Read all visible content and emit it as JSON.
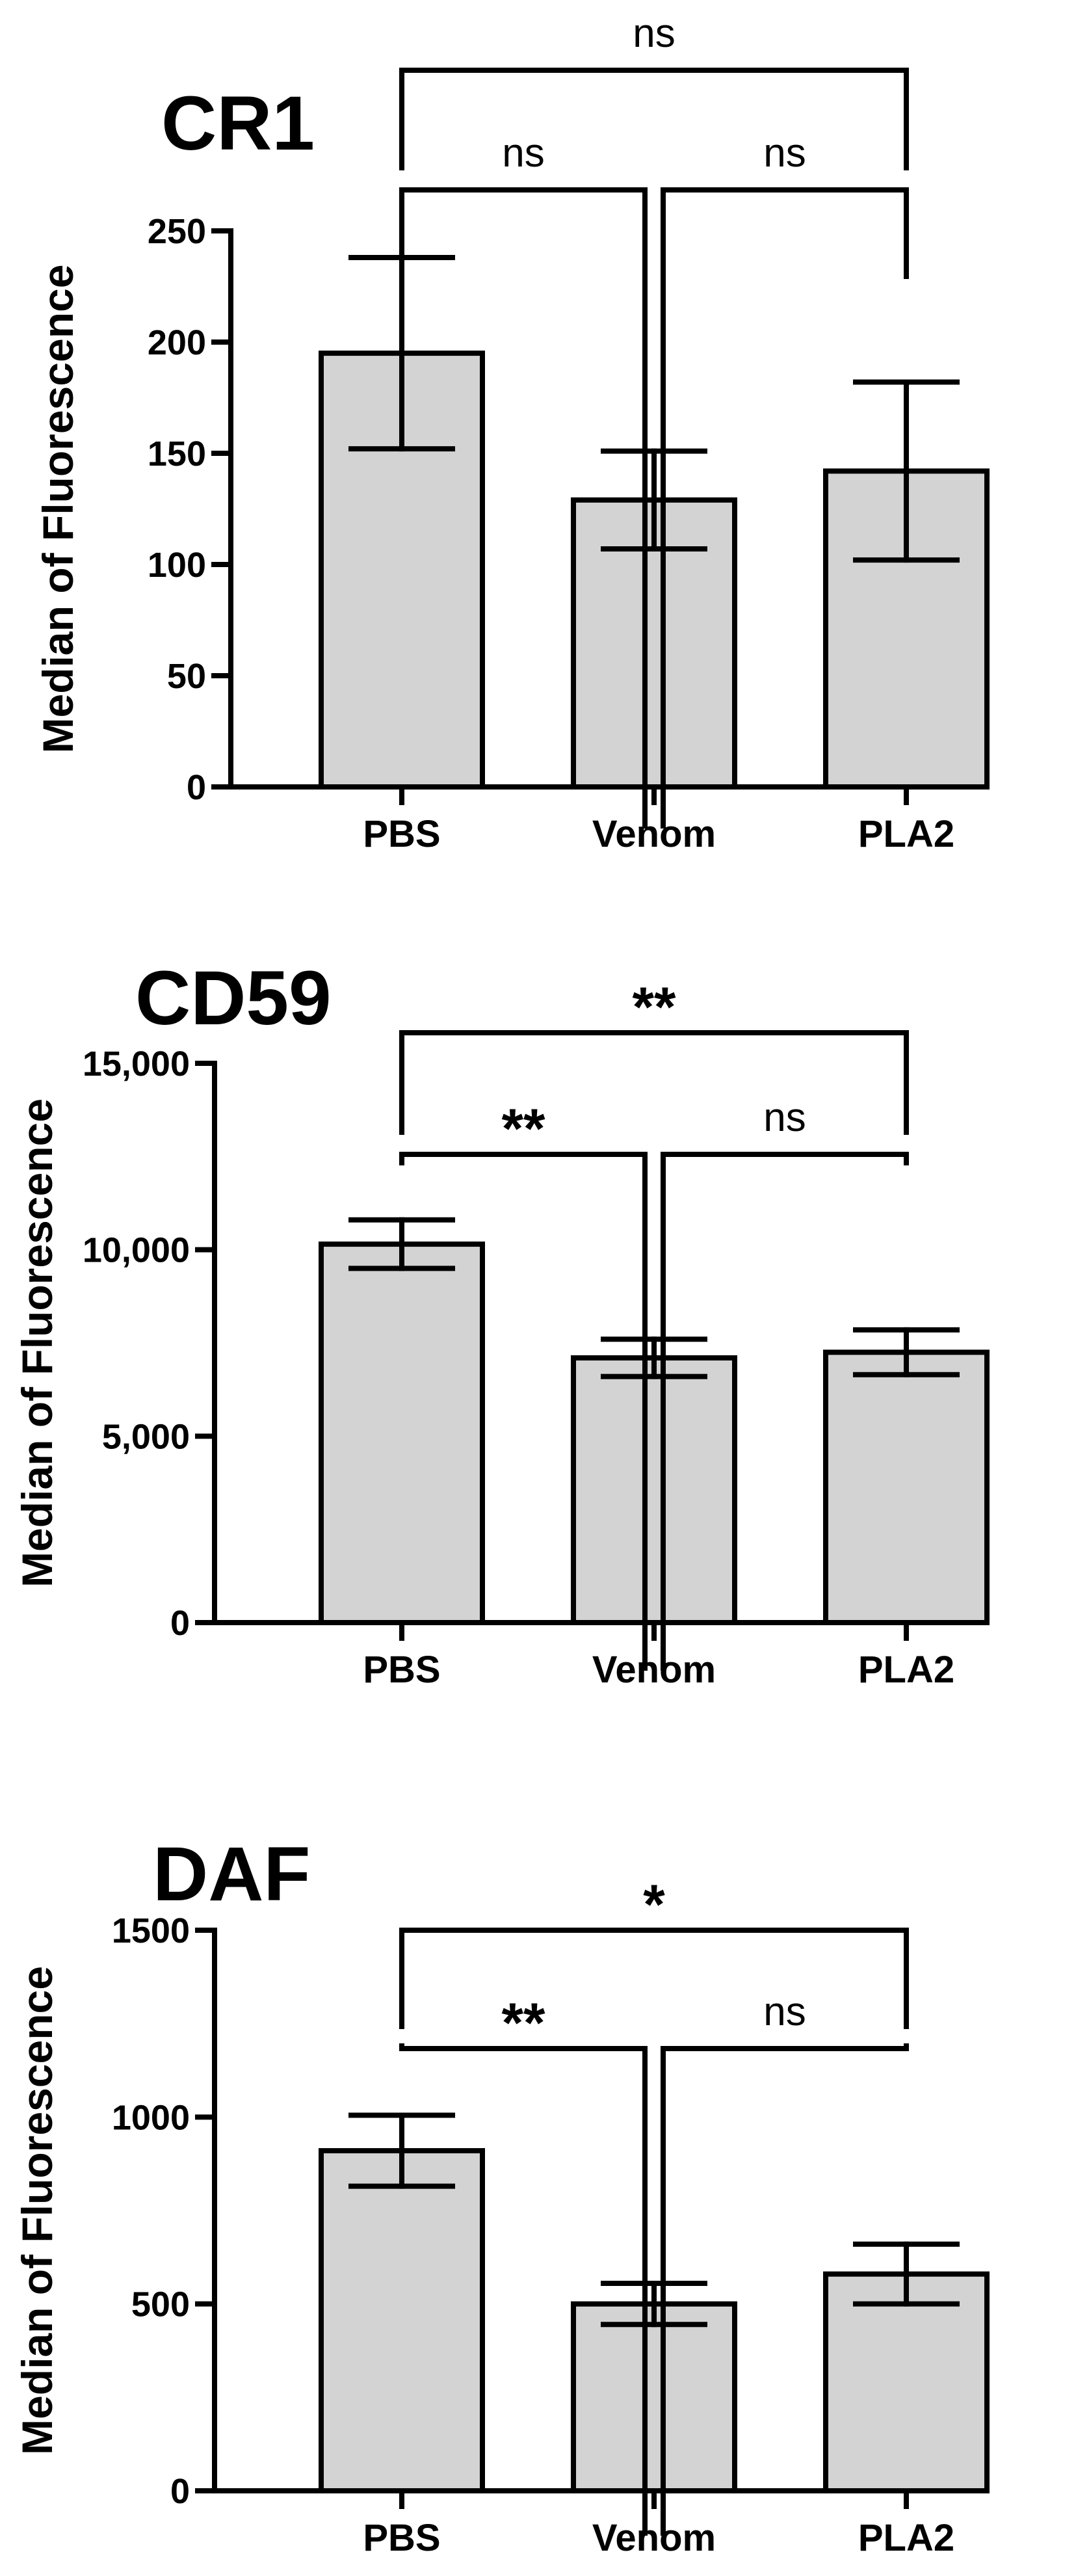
{
  "chart_data": [
    {
      "type": "bar",
      "title": "CR1",
      "ylabel": "Median of  Fluorescence",
      "categories": [
        "PBS",
        "Venom",
        "PLA2"
      ],
      "values": [
        195,
        129,
        142
      ],
      "error": [
        43,
        22,
        40
      ],
      "ylim": [
        0,
        250
      ],
      "yticks": [
        0,
        50,
        100,
        150,
        200,
        250
      ],
      "ytick_labels": [
        "0",
        "50",
        "100",
        "150",
        "200",
        "250"
      ],
      "bar_color": "#d3d3d3",
      "significance": [
        {
          "pair": [
            "PBS",
            "Venom"
          ],
          "label": "ns",
          "level": 1
        },
        {
          "pair": [
            "Venom",
            "PLA2"
          ],
          "label": "ns",
          "level": 1
        },
        {
          "pair": [
            "PBS",
            "PLA2"
          ],
          "label": "ns",
          "level": 2
        }
      ]
    },
    {
      "type": "bar",
      "title": "CD59",
      "ylabel": "Median of  Fluorescence",
      "categories": [
        "PBS",
        "Venom",
        "PLA2"
      ],
      "values": [
        10150,
        7100,
        7250
      ],
      "error": [
        650,
        500,
        600
      ],
      "ylim": [
        0,
        15000
      ],
      "yticks": [
        0,
        5000,
        10000,
        15000
      ],
      "ytick_labels": [
        "0",
        "5,000",
        "10,000",
        "15,000"
      ],
      "bar_color": "#d3d3d3",
      "significance": [
        {
          "pair": [
            "PBS",
            "Venom"
          ],
          "label": "**",
          "level": 1
        },
        {
          "pair": [
            "Venom",
            "PLA2"
          ],
          "label": "ns",
          "level": 1
        },
        {
          "pair": [
            "PBS",
            "PLA2"
          ],
          "label": "**",
          "level": 2
        }
      ]
    },
    {
      "type": "bar",
      "title": "DAF",
      "ylabel": "Median of  Fluorescence",
      "categories": [
        "PBS",
        "Venom",
        "PLA2"
      ],
      "values": [
        910,
        500,
        580
      ],
      "error": [
        95,
        55,
        80
      ],
      "ylim": [
        0,
        1500
      ],
      "yticks": [
        0,
        500,
        1000,
        1500
      ],
      "ytick_labels": [
        "0",
        "500",
        "1000",
        "1500"
      ],
      "bar_color": "#d3d3d3",
      "significance": [
        {
          "pair": [
            "PBS",
            "Venom"
          ],
          "label": "**",
          "level": 1
        },
        {
          "pair": [
            "Venom",
            "PLA2"
          ],
          "label": "ns",
          "level": 1
        },
        {
          "pair": [
            "PBS",
            "PLA2"
          ],
          "label": "*",
          "level": 2
        }
      ]
    }
  ]
}
